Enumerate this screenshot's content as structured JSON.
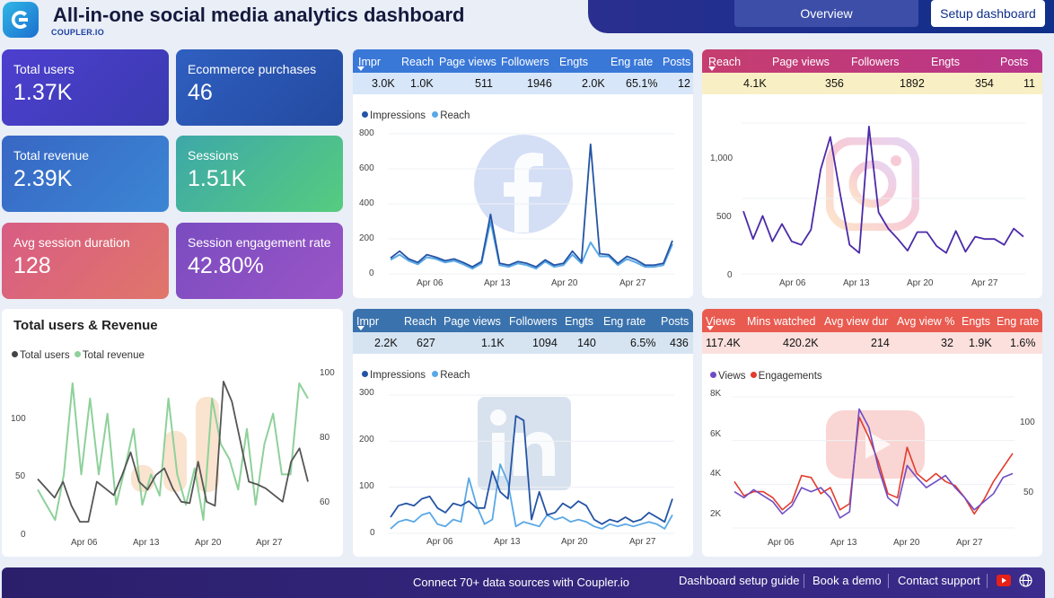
{
  "header": {
    "title": "All-in-one social media analytics dashboard",
    "subtitle": "COUPLER.IO",
    "overview_label": "Overview",
    "setup_label": "Setup dashboard"
  },
  "kpis": [
    {
      "label": "Total users",
      "value": "1.37K",
      "color": "#4a3fc4"
    },
    {
      "label": "Ecommerce purchases",
      "value": "46",
      "color": "#2b5bb5"
    },
    {
      "label": "Total revenue",
      "value": "2.39K",
      "color": "#3b73c9"
    },
    {
      "label": "Sessions",
      "value": "1.51K",
      "color": "#46bf8c"
    },
    {
      "label": "Avg session duration",
      "value": "128",
      "color": "#d8627a"
    },
    {
      "label": "Session engagement rate",
      "value": "42.80%",
      "color": "#8a52c6"
    }
  ],
  "facebook": {
    "headers": [
      "Impr",
      "Reach",
      "Page views",
      "Followers",
      "Engts",
      "Eng rate",
      "Posts"
    ],
    "values": [
      "3.0K",
      "1.0K",
      "511",
      "1946",
      "2.0K",
      "65.1%",
      "12"
    ],
    "legend": [
      "Impressions",
      "Reach"
    ],
    "y_ticks": [
      "800",
      "600",
      "400",
      "200",
      "0"
    ],
    "x_ticks": [
      "Apr 06",
      "Apr 13",
      "Apr 20",
      "Apr 27"
    ],
    "brand_color": "#3b6fd6"
  },
  "instagram": {
    "headers": [
      "Reach",
      "Page views",
      "Followers",
      "Engts",
      "Posts"
    ],
    "values": [
      "4.1K",
      "356",
      "1892",
      "354",
      "11"
    ],
    "y_ticks": [
      "1,000",
      "500",
      "0"
    ],
    "x_ticks": [
      "Apr 06",
      "Apr 13",
      "Apr 20",
      "Apr 27"
    ],
    "brand_color": "#c23b78"
  },
  "users_revenue": {
    "title": "Total users & Revenue",
    "legend": [
      "Total users",
      "Total revenue"
    ],
    "y_left": [
      "100",
      "50",
      "0"
    ],
    "y_right": [
      "100",
      "80",
      "60"
    ],
    "x_ticks": [
      "Apr 06",
      "Apr 13",
      "Apr 20",
      "Apr 27"
    ]
  },
  "linkedin": {
    "headers": [
      "Impr",
      "Reach",
      "Page views",
      "Followers",
      "Engts",
      "Eng rate",
      "Posts"
    ],
    "values": [
      "2.2K",
      "627",
      "1.1K",
      "1094",
      "140",
      "6.5%",
      "436"
    ],
    "legend": [
      "Impressions",
      "Reach"
    ],
    "y_ticks": [
      "300",
      "200",
      "100",
      "0"
    ],
    "x_ticks": [
      "Apr 06",
      "Apr 13",
      "Apr 20",
      "Apr 27"
    ],
    "brand_color": "#3d6fa8"
  },
  "youtube": {
    "headers": [
      "Views",
      "Mins watched",
      "Avg view dur",
      "Avg view %",
      "Engts",
      "Eng rate"
    ],
    "values": [
      "117.4K",
      "420.2K",
      "214",
      "32",
      "1.9K",
      "1.6%"
    ],
    "legend": [
      "Views",
      "Engagements"
    ],
    "y_left": [
      "8K",
      "6K",
      "4K",
      "2K"
    ],
    "y_right": [
      "100",
      "50"
    ],
    "x_ticks": [
      "Apr 06",
      "Apr 13",
      "Apr 20",
      "Apr 27"
    ],
    "brand_color": "#e8574f"
  },
  "footer": {
    "cta": "Connect 70+ data sources with Coupler.io",
    "links": [
      "Dashboard setup guide",
      "Book a demo",
      "Contact support"
    ]
  },
  "chart_data": [
    {
      "type": "line",
      "series": [
        {
          "name": "Impressions",
          "values": [
            90,
            130,
            85,
            65,
            110,
            95,
            75,
            85,
            65,
            40,
            70,
            340,
            60,
            50,
            70,
            60,
            40,
            80,
            50,
            60,
            130,
            70,
            740,
            115,
            110,
            60,
            100,
            80,
            50,
            50,
            60,
            190
          ]
        },
        {
          "name": "Reach",
          "values": [
            80,
            110,
            75,
            55,
            95,
            85,
            65,
            75,
            55,
            30,
            60,
            300,
            50,
            40,
            60,
            50,
            30,
            70,
            40,
            50,
            110,
            60,
            180,
            100,
            100,
            50,
            85,
            65,
            40,
            40,
            50,
            170
          ]
        }
      ],
      "ylim": [
        0,
        800
      ]
    },
    {
      "type": "line",
      "series": [
        {
          "name": "Reach",
          "values": [
            540,
            300,
            500,
            280,
            430,
            280,
            250,
            380,
            900,
            1180,
            700,
            250,
            180,
            1270,
            530,
            390,
            300,
            200,
            360,
            360,
            240,
            180,
            370,
            190,
            320,
            300,
            300,
            250,
            390,
            320
          ]
        }
      ],
      "ylim": [
        0,
        1300
      ]
    },
    {
      "type": "line",
      "series": [
        {
          "name": "Total users",
          "values": [
            42,
            35,
            28,
            40,
            22,
            10,
            10,
            40,
            35,
            30,
            45,
            62,
            40,
            34,
            45,
            50,
            35,
            25,
            24,
            55,
            25,
            22,
            115,
            100,
            70,
            40,
            38,
            35,
            30,
            25,
            55,
            65,
            40
          ]
        },
        {
          "name": "Total revenue",
          "values": [
            65,
            60,
            55,
            70,
            100,
            70,
            95,
            70,
            90,
            60,
            72,
            85,
            60,
            70,
            63,
            95,
            70,
            60,
            72,
            55,
            95,
            80,
            75,
            65,
            85,
            60,
            80,
            90,
            70,
            70,
            100,
            95
          ]
        }
      ]
    },
    {
      "type": "line",
      "series": [
        {
          "name": "Impressions",
          "values": [
            35,
            60,
            65,
            60,
            75,
            80,
            55,
            45,
            65,
            60,
            70,
            55,
            55,
            135,
            90,
            75,
            255,
            245,
            30,
            90,
            40,
            45,
            65,
            55,
            70,
            60,
            30,
            20,
            30,
            25,
            35,
            25,
            30,
            45,
            35,
            25,
            75
          ]
        },
        {
          "name": "Reach",
          "values": [
            10,
            25,
            30,
            25,
            40,
            45,
            20,
            15,
            30,
            25,
            120,
            60,
            20,
            30,
            150,
            110,
            15,
            25,
            20,
            15,
            40,
            30,
            35,
            25,
            30,
            25,
            15,
            10,
            20,
            15,
            20,
            15,
            20,
            25,
            20,
            10,
            40
          ]
        }
      ],
      "ylim": [
        0,
        300
      ]
    },
    {
      "type": "line",
      "series": [
        {
          "name": "Views",
          "values": [
            3.3,
            3.0,
            3.4,
            3.1,
            2.8,
            2.2,
            2.6,
            3.5,
            3.3,
            3.5,
            3.0,
            2.0,
            2.3,
            7.4,
            6.5,
            4.5,
            3.0,
            2.6,
            4.6,
            4.0,
            3.5,
            3.8,
            4.1,
            3.5,
            3.0,
            2.4,
            2.8,
            3.2,
            4.0,
            4.2
          ]
        },
        {
          "name": "Engagements",
          "values": [
            3.8,
            3.1,
            3.3,
            3.3,
            3.0,
            2.4,
            2.8,
            4.1,
            4.0,
            3.2,
            3.5,
            2.4,
            2.7,
            7.0,
            6.0,
            4.8,
            3.2,
            3.0,
            5.5,
            4.2,
            3.8,
            4.2,
            3.8,
            3.6,
            3.0,
            2.2,
            2.9,
            3.8,
            4.5,
            5.2
          ]
        }
      ]
    }
  ]
}
